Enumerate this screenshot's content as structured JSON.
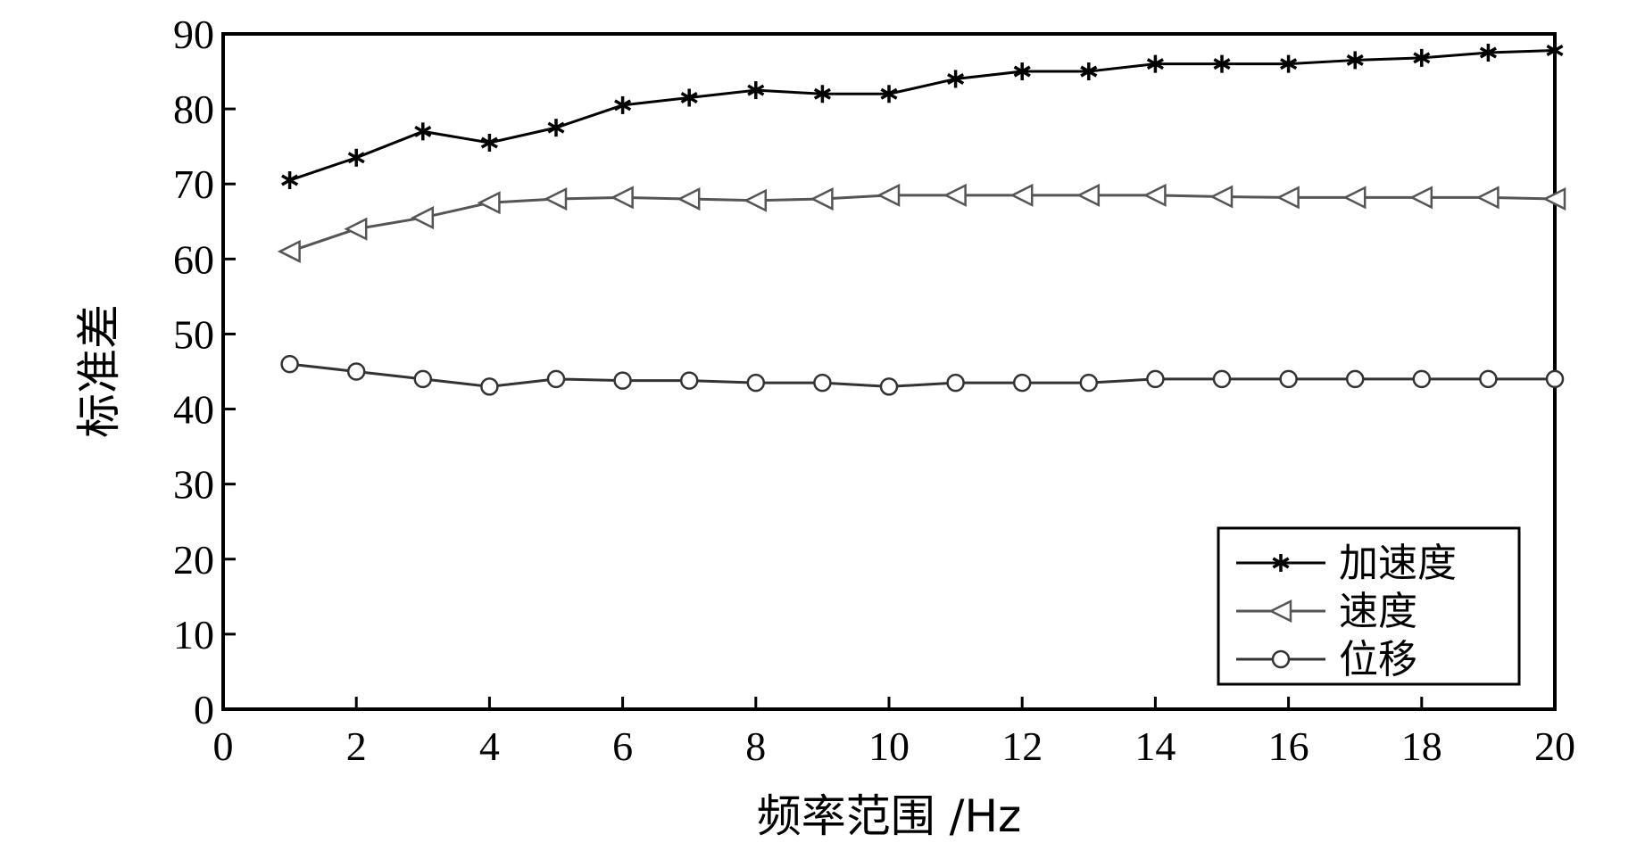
{
  "chart_data": {
    "type": "line",
    "xlabel": "频率范围 /Hz",
    "ylabel": "标准差",
    "xlim": [
      0,
      20
    ],
    "ylim": [
      0,
      90
    ],
    "xticks": [
      0,
      2,
      4,
      6,
      8,
      10,
      12,
      14,
      16,
      18,
      20
    ],
    "yticks": [
      0,
      10,
      20,
      30,
      40,
      50,
      60,
      70,
      80,
      90
    ],
    "grid": false,
    "legend_position": "bottom-right",
    "x": [
      1,
      2,
      3,
      4,
      5,
      6,
      7,
      8,
      9,
      10,
      11,
      12,
      13,
      14,
      15,
      16,
      17,
      18,
      19,
      20
    ],
    "series": [
      {
        "name": "加速度",
        "marker": "asterisk",
        "color": "#000000",
        "values": [
          70.5,
          73.5,
          77,
          75.5,
          77.5,
          80.5,
          81.5,
          82.5,
          82,
          82,
          84,
          85,
          85,
          86,
          86,
          86,
          86.5,
          86.8,
          87.5,
          87.8
        ]
      },
      {
        "name": "速度",
        "marker": "triangle-left",
        "color": "#555555",
        "values": [
          61,
          64,
          65.5,
          67.5,
          68,
          68.2,
          68,
          67.8,
          68,
          68.5,
          68.5,
          68.5,
          68.5,
          68.5,
          68.3,
          68.2,
          68.2,
          68.2,
          68.2,
          68
        ]
      },
      {
        "name": "位移",
        "marker": "circle",
        "color": "#333333",
        "values": [
          46,
          45,
          44,
          43,
          44,
          43.8,
          43.8,
          43.5,
          43.5,
          43,
          43.5,
          43.5,
          43.5,
          44,
          44,
          44,
          44,
          44,
          44,
          44
        ]
      }
    ]
  }
}
